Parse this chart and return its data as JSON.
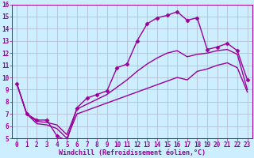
{
  "xlabel": "Windchill (Refroidissement éolien,°C)",
  "xlim": [
    -0.5,
    23.5
  ],
  "ylim": [
    5,
    16
  ],
  "xticks": [
    0,
    1,
    2,
    3,
    4,
    5,
    6,
    7,
    8,
    9,
    10,
    11,
    12,
    13,
    14,
    15,
    16,
    17,
    18,
    19,
    20,
    21,
    22,
    23
  ],
  "yticks": [
    5,
    6,
    7,
    8,
    9,
    10,
    11,
    12,
    13,
    14,
    15,
    16
  ],
  "line_color": "#990099",
  "background_color": "#cceeff",
  "grid_color": "#b0b8cc",
  "line1_x": [
    0,
    1,
    2,
    3,
    4,
    5,
    6,
    7,
    8,
    9,
    10,
    11,
    12,
    13,
    14,
    15,
    16,
    17,
    18,
    19,
    20,
    21,
    22,
    23
  ],
  "line1_y": [
    9.5,
    7.0,
    6.5,
    6.5,
    5.2,
    4.8,
    7.5,
    8.3,
    8.6,
    8.9,
    10.8,
    11.1,
    13.0,
    14.4,
    14.9,
    15.1,
    15.4,
    14.7,
    14.9,
    12.3,
    12.5,
    12.8,
    12.2,
    9.8
  ],
  "line2_x": [
    0,
    1,
    2,
    3,
    4,
    5,
    6,
    7,
    8,
    9,
    10,
    11,
    12,
    13,
    14,
    15,
    16,
    17,
    18,
    19,
    20,
    21,
    22,
    23
  ],
  "line2_y": [
    9.5,
    7.0,
    6.4,
    6.3,
    6.1,
    5.3,
    7.4,
    7.8,
    8.2,
    8.6,
    9.2,
    9.8,
    10.5,
    11.1,
    11.6,
    12.0,
    12.2,
    11.7,
    11.9,
    12.0,
    12.2,
    12.3,
    11.9,
    9.0
  ],
  "line3_x": [
    0,
    1,
    2,
    3,
    4,
    5,
    6,
    7,
    8,
    9,
    10,
    11,
    12,
    13,
    14,
    15,
    16,
    17,
    18,
    19,
    20,
    21,
    22,
    23
  ],
  "line3_y": [
    9.5,
    7.0,
    6.2,
    6.1,
    5.8,
    5.0,
    7.0,
    7.3,
    7.6,
    7.9,
    8.2,
    8.5,
    8.8,
    9.1,
    9.4,
    9.7,
    10.0,
    9.8,
    10.5,
    10.7,
    11.0,
    11.2,
    10.8,
    8.8
  ],
  "marker_style": "D",
  "marker_size": 2.5,
  "line_width": 1.0,
  "tick_fontsize": 5.5,
  "xlabel_fontsize": 6.0
}
